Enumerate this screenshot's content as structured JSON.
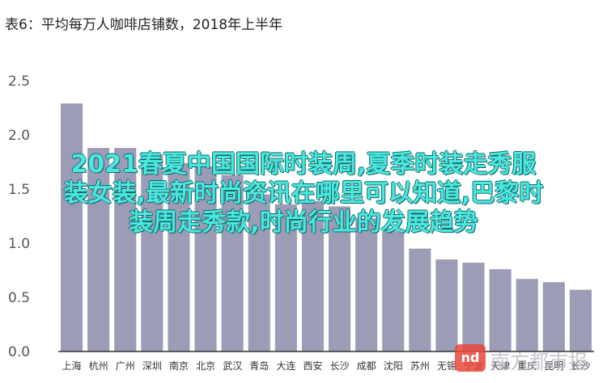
{
  "overlay": {
    "lines": [
      "2021春夏中国国际时装周,夏季时装走秀服",
      "装女装,最新时尚资讯在哪里可以知道,巴黎时",
      "装周走秀款,时尚行业的发展趋势"
    ]
  },
  "watermark": {
    "logo": "nd",
    "text": "南方都市报"
  },
  "colors": {
    "bar": "#9c9cb6",
    "axis": "#333333",
    "title": "#222222"
  },
  "chart_data": {
    "type": "bar",
    "title": "表6：平均每万人咖啡店铺数，2018年上半年",
    "xlabel": "",
    "ylabel": "",
    "ylim": [
      0,
      2.5
    ],
    "yticks": [
      "0.0",
      "0.5",
      "1.0",
      "1.5",
      "2.0",
      "2.5"
    ],
    "grid": false,
    "categories": [
      "上海",
      "杭州",
      "广州",
      "深圳",
      "南京",
      "北京",
      "武汉",
      "青岛",
      "大连",
      "西安",
      "长沙",
      "成都",
      "沈阳",
      "苏州",
      "无锡",
      "宁波",
      "天津",
      "重庆",
      "昆明",
      "长沙"
    ],
    "values": [
      2.29,
      1.88,
      1.88,
      1.82,
      1.74,
      1.71,
      1.63,
      1.45,
      1.36,
      1.39,
      1.34,
      1.23,
      1.11,
      0.95,
      0.85,
      0.82,
      0.76,
      0.67,
      0.64,
      0.57
    ]
  }
}
